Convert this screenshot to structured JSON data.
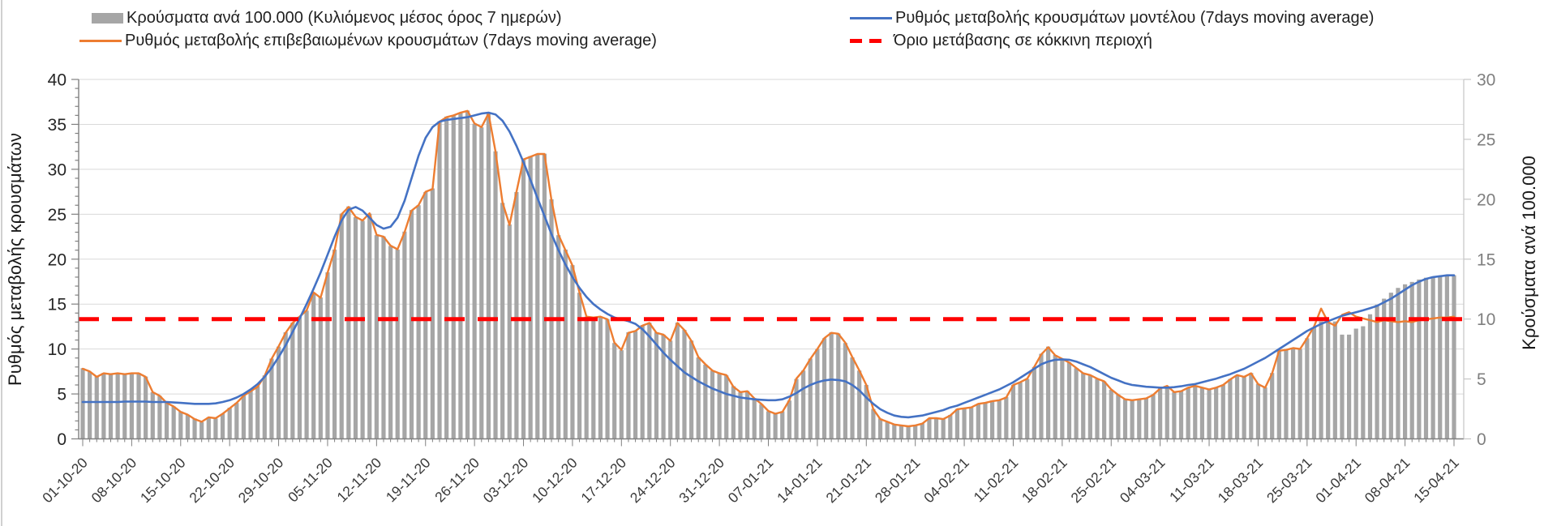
{
  "chart_data": {
    "type": "combo",
    "title": "",
    "x": {
      "start": "01-10-20",
      "end": "15-04-21",
      "frequency": "daily",
      "count": 197,
      "tick_labels": [
        "01-10-20",
        "08-10-20",
        "15-10-20",
        "22-10-20",
        "29-10-20",
        "05-11-20",
        "12-11-20",
        "19-11-20",
        "26-11-20",
        "03-12-20",
        "10-12-20",
        "17-12-20",
        "24-12-20",
        "31-12-20",
        "07-01-21",
        "14-01-21",
        "21-01-21",
        "28-01-21",
        "04-02-21",
        "11-02-21",
        "18-02-21",
        "25-02-21",
        "04-03-21",
        "11-03-21",
        "18-03-21",
        "25-03-21",
        "01-04-21",
        "08-04-21",
        "15-04-21"
      ]
    },
    "left_axis": {
      "label": "Ρυθμός μεταβολής κρουσμάτων",
      "range": [
        0,
        40
      ],
      "tick_step": 5,
      "tick_labels": [
        "0",
        "5",
        "10",
        "15",
        "20",
        "25",
        "30",
        "35",
        "40"
      ]
    },
    "right_axis": {
      "label": "Κρούσματα ανά 100.000",
      "range": [
        0,
        30
      ],
      "tick_step": 5,
      "tick_labels": [
        "0",
        "5",
        "10",
        "15",
        "20",
        "25",
        "30"
      ]
    },
    "grid": {
      "on": true,
      "color": "#d9d9d9",
      "left_axis_interval": 5
    },
    "legend_position": "top",
    "series": [
      {
        "name": "Κρούσματα ανά 100.000 (Κυλιόμενος μέσος όρος 7 ημερών)",
        "type": "bar",
        "axis": "right",
        "color": "#a6a6a6",
        "values": [
          5.9,
          5.6,
          5.2,
          5.5,
          5.4,
          5.5,
          5.4,
          5.5,
          5.5,
          5.2,
          3.9,
          3.6,
          3.0,
          2.7,
          2.3,
          2.0,
          1.7,
          1.4,
          1.8,
          1.7,
          2.1,
          2.6,
          3.0,
          3.6,
          4.0,
          4.4,
          5.3,
          6.7,
          7.7,
          8.9,
          9.7,
          10.2,
          10.7,
          12.2,
          11.8,
          13.9,
          15.8,
          18.8,
          19.4,
          18.5,
          18.2,
          18.8,
          17.0,
          16.9,
          16.1,
          15.8,
          17.3,
          19.1,
          19.5,
          20.6,
          20.9,
          26.5,
          26.9,
          27.0,
          27.2,
          27.4,
          26.3,
          26.0,
          27.2,
          24.0,
          19.7,
          17.9,
          20.6,
          23.3,
          23.6,
          23.8,
          23.8,
          20.0,
          17.0,
          15.8,
          14.5,
          12.2,
          10.2,
          10.1,
          10.2,
          10.0,
          8.0,
          7.4,
          8.9,
          9.0,
          9.5,
          9.7,
          8.9,
          8.7,
          8.2,
          9.7,
          9.1,
          8.2,
          6.8,
          6.2,
          5.7,
          5.5,
          5.3,
          4.4,
          3.9,
          4.0,
          3.4,
          2.9,
          2.3,
          2.1,
          2.3,
          3.2,
          5.0,
          5.7,
          6.7,
          7.5,
          8.4,
          8.9,
          8.8,
          8.0,
          6.8,
          5.7,
          4.5,
          2.5,
          1.7,
          1.4,
          1.2,
          1.1,
          1.1,
          1.1,
          1.3,
          1.7,
          1.7,
          1.7,
          2.0,
          2.5,
          2.6,
          2.6,
          2.9,
          3.0,
          3.2,
          3.2,
          3.5,
          4.5,
          4.7,
          5.0,
          6.0,
          7.1,
          7.7,
          7.0,
          6.7,
          6.4,
          5.9,
          5.5,
          5.3,
          5.0,
          4.8,
          4.1,
          3.7,
          3.3,
          3.2,
          3.3,
          3.4,
          3.7,
          4.2,
          4.4,
          3.9,
          4.0,
          4.3,
          4.4,
          4.3,
          4.1,
          4.3,
          4.5,
          5.0,
          5.3,
          5.2,
          5.5,
          4.6,
          4.3,
          5.5,
          7.4,
          7.4,
          7.6,
          7.5,
          8.4,
          9.3,
          9.8,
          9.7,
          9.8,
          8.7,
          8.7,
          9.2,
          9.4,
          10.4,
          11.2,
          11.7,
          12.2,
          12.6,
          12.9,
          13.1,
          13.3,
          13.45,
          13.55,
          13.6,
          13.65,
          13.65
        ]
      },
      {
        "name": "Ρυθμός μεταβολής επιβεβαιωμένων κρουσμάτων (7days moving average)",
        "type": "line",
        "axis": "left",
        "color": "#ed7d31",
        "values": [
          7.8,
          7.5,
          6.9,
          7.3,
          7.2,
          7.3,
          7.2,
          7.3,
          7.3,
          6.9,
          5.2,
          4.8,
          4.0,
          3.6,
          3.0,
          2.7,
          2.2,
          1.9,
          2.4,
          2.3,
          2.8,
          3.4,
          4.0,
          4.8,
          5.3,
          5.8,
          7.0,
          8.9,
          10.3,
          11.8,
          12.9,
          13.6,
          14.3,
          16.3,
          15.7,
          18.5,
          21.0,
          25.0,
          25.8,
          24.7,
          24.3,
          25.1,
          22.7,
          22.5,
          21.5,
          21.1,
          23.0,
          25.4,
          26.0,
          27.5,
          27.8,
          35.3,
          35.8,
          36.0,
          36.3,
          36.5,
          35.1,
          34.7,
          36.2,
          32.0,
          26.3,
          23.8,
          27.5,
          31.1,
          31.4,
          31.7,
          31.7,
          26.6,
          22.7,
          21.0,
          19.3,
          16.3,
          13.6,
          13.5,
          13.6,
          13.3,
          10.7,
          9.9,
          11.8,
          12.0,
          12.6,
          12.9,
          11.8,
          11.6,
          10.9,
          12.9,
          12.1,
          10.9,
          9.1,
          8.3,
          7.6,
          7.3,
          7.1,
          5.8,
          5.2,
          5.3,
          4.5,
          3.9,
          3.1,
          2.8,
          3.0,
          4.3,
          6.7,
          7.6,
          8.9,
          10.0,
          11.2,
          11.8,
          11.7,
          10.7,
          9.1,
          7.6,
          6.0,
          3.3,
          2.2,
          1.9,
          1.6,
          1.5,
          1.4,
          1.5,
          1.7,
          2.3,
          2.3,
          2.2,
          2.6,
          3.3,
          3.4,
          3.5,
          3.9,
          4.0,
          4.2,
          4.3,
          4.6,
          6.0,
          6.3,
          6.7,
          8.0,
          9.4,
          10.2,
          9.3,
          8.9,
          8.5,
          7.9,
          7.3,
          7.1,
          6.7,
          6.4,
          5.5,
          4.9,
          4.4,
          4.3,
          4.4,
          4.5,
          4.9,
          5.6,
          5.9,
          5.2,
          5.3,
          5.7,
          5.9,
          5.7,
          5.5,
          5.7,
          6.0,
          6.6,
          7.1,
          6.9,
          7.3,
          6.1,
          5.7,
          7.3,
          9.8,
          9.9,
          10.1,
          10.0,
          11.2,
          12.5,
          14.5,
          13.0,
          12.6,
          13.8,
          14.1,
          13.6,
          13.4,
          13.2,
          13.0,
          13.2,
          13.1,
          13.0,
          13.1,
          13.0,
          13.2,
          13.3,
          13.4,
          13.5,
          13.5,
          13.6
        ]
      },
      {
        "name": "Ρυθμός μεταβολής κρουσμάτων μοντέλου (7days moving average)",
        "type": "line",
        "axis": "left",
        "color": "#4472c4",
        "values": [
          4.1,
          4.1,
          4.1,
          4.1,
          4.1,
          4.1,
          4.15,
          4.15,
          4.15,
          4.15,
          4.1,
          4.1,
          4.1,
          4.05,
          4.0,
          3.95,
          3.9,
          3.9,
          3.9,
          3.95,
          4.1,
          4.3,
          4.6,
          5.0,
          5.5,
          6.1,
          6.9,
          7.9,
          9.1,
          10.4,
          11.9,
          13.4,
          15.0,
          16.7,
          18.5,
          20.5,
          22.5,
          24.3,
          25.5,
          25.8,
          25.4,
          24.6,
          23.8,
          23.4,
          23.6,
          24.6,
          26.5,
          29.0,
          31.5,
          33.5,
          34.7,
          35.3,
          35.5,
          35.6,
          35.7,
          35.8,
          36.0,
          36.2,
          36.3,
          36.1,
          35.4,
          34.2,
          32.6,
          30.8,
          28.8,
          26.8,
          24.8,
          22.8,
          21.0,
          19.4,
          18.0,
          16.8,
          15.8,
          15.0,
          14.4,
          13.9,
          13.5,
          13.3,
          13.1,
          12.8,
          12.2,
          11.4,
          10.5,
          9.6,
          8.8,
          8.1,
          7.4,
          6.9,
          6.4,
          6.0,
          5.6,
          5.3,
          5.0,
          4.8,
          4.6,
          4.5,
          4.4,
          4.35,
          4.3,
          4.3,
          4.4,
          4.7,
          5.1,
          5.6,
          6.0,
          6.3,
          6.5,
          6.6,
          6.55,
          6.4,
          6.0,
          5.4,
          4.6,
          3.9,
          3.3,
          2.9,
          2.6,
          2.45,
          2.4,
          2.5,
          2.6,
          2.8,
          3.0,
          3.2,
          3.5,
          3.7,
          4.0,
          4.3,
          4.6,
          4.9,
          5.2,
          5.5,
          5.9,
          6.3,
          6.8,
          7.3,
          7.8,
          8.3,
          8.6,
          8.8,
          8.85,
          8.8,
          8.6,
          8.3,
          8.0,
          7.6,
          7.2,
          6.8,
          6.5,
          6.2,
          6.0,
          5.9,
          5.8,
          5.75,
          5.7,
          5.7,
          5.75,
          5.85,
          6.0,
          6.1,
          6.3,
          6.5,
          6.7,
          6.95,
          7.2,
          7.5,
          7.8,
          8.2,
          8.6,
          9.0,
          9.5,
          10.0,
          10.5,
          11.0,
          11.5,
          12.0,
          12.4,
          12.8,
          13.1,
          13.4,
          13.7,
          13.9,
          14.1,
          14.3,
          14.55,
          14.8,
          15.2,
          15.6,
          16.1,
          16.6,
          17.1,
          17.5,
          17.8,
          18.0,
          18.1,
          18.2,
          18.2
        ]
      },
      {
        "name": "Όριο μετάβασης σε κόκκινη περιοχή",
        "type": "threshold-line",
        "axis": "right",
        "color": "#ff0000",
        "style": "dashed",
        "value": 10
      }
    ]
  }
}
